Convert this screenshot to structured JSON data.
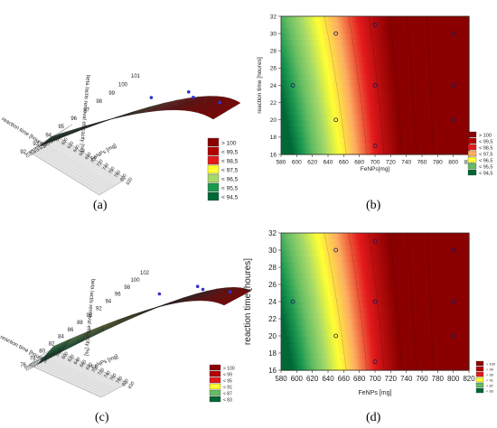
{
  "palette": {
    "dark_green": "#006837",
    "green": "#1a9850",
    "light_green": "#66bd63",
    "lime": "#a6d96a",
    "yellow": "#ffff33",
    "orange": "#fdae61",
    "red": "#e31a1c",
    "dark_red": "#8b0000"
  },
  "chart_data": [
    {
      "panel": "(a)",
      "type": "surface3d",
      "xlabel": "FeNPs [mg]",
      "ylabel": "reaction time [houres]",
      "zlabel": "beta lactis removal efficacity [%]",
      "x_ticks": [
        "580",
        "600",
        "620",
        "640",
        "660",
        "680",
        "700",
        "720",
        "740",
        "760",
        "780",
        "800",
        "820"
      ],
      "y_ticks": [
        "16",
        "18",
        "20",
        "22",
        "24",
        "26",
        "28",
        "30",
        "32"
      ],
      "z_ticks": [
        "92",
        "93",
        "94",
        "95",
        "96",
        "97",
        "98",
        "99",
        "100",
        "101"
      ],
      "zlim": [
        92,
        101
      ],
      "legend": [
        {
          "label": "> 100",
          "color": "#8b0000"
        },
        {
          "label": "< 99,5",
          "color": "#b30000"
        },
        {
          "label": "< 98,5",
          "color": "#e31a1c"
        },
        {
          "label": "< 97,5",
          "color": "#ffff33"
        },
        {
          "label": "< 96,5",
          "color": "#a6d96a"
        },
        {
          "label": "< 95,5",
          "color": "#1a9850"
        },
        {
          "label": "< 94,5",
          "color": "#006837"
        }
      ]
    },
    {
      "panel": "(b)",
      "type": "contour",
      "xlabel": "FeNPs[mg]",
      "ylabel": "reaction time [houres]",
      "xlim": [
        580,
        820
      ],
      "ylim": [
        16,
        32
      ],
      "x_ticks": [
        "580",
        "600",
        "620",
        "640",
        "660",
        "680",
        "700",
        "720",
        "740",
        "760",
        "780",
        "800",
        "820"
      ],
      "y_ticks": [
        "16",
        "18",
        "20",
        "22",
        "24",
        "26",
        "28",
        "30",
        "32"
      ],
      "points": [
        [
          595,
          24
        ],
        [
          650,
          30
        ],
        [
          650,
          20
        ],
        [
          700,
          17
        ],
        [
          700,
          31
        ],
        [
          700,
          24
        ],
        [
          800,
          30
        ],
        [
          800,
          24
        ],
        [
          800,
          20
        ]
      ],
      "legend": [
        {
          "label": "> 100",
          "color": "#8b0000"
        },
        {
          "label": "< 99,5",
          "color": "#b30000"
        },
        {
          "label": "< 98,5",
          "color": "#e31a1c"
        },
        {
          "label": "< 97,5",
          "color": "#fdae61"
        },
        {
          "label": "< 96,5",
          "color": "#ffff33"
        },
        {
          "label": "< 95,5",
          "color": "#66bd63"
        },
        {
          "label": "< 94,5",
          "color": "#006837"
        }
      ]
    },
    {
      "panel": "(c)",
      "type": "surface3d",
      "xlabel": "FeNPs [mg]",
      "ylabel": "reaction time [houres]",
      "zlabel": "beta lactis removal efficacity [%]",
      "x_ticks": [
        "580",
        "600",
        "620",
        "640",
        "660",
        "680",
        "700",
        "720",
        "740",
        "760",
        "780",
        "800",
        "820"
      ],
      "y_ticks": [
        "16",
        "18",
        "20",
        "22",
        "24",
        "26",
        "28",
        "30",
        "32"
      ],
      "z_ticks": [
        "76",
        "78",
        "80",
        "82",
        "84",
        "86",
        "88",
        "90",
        "92",
        "94",
        "96",
        "98",
        "100",
        "102"
      ],
      "zlim": [
        76,
        102
      ],
      "legend": [
        {
          "label": "> 100",
          "color": "#8b0000"
        },
        {
          "label": "< 99",
          "color": "#b30000"
        },
        {
          "label": "< 95",
          "color": "#e31a1c"
        },
        {
          "label": "< 91",
          "color": "#ffff33"
        },
        {
          "label": "< 87",
          "color": "#66bd63"
        },
        {
          "label": "< 83",
          "color": "#006837"
        }
      ]
    },
    {
      "panel": "(d)",
      "type": "contour",
      "xlabel": "FeNPs [mg]",
      "ylabel": "reaction time [houres]",
      "xlim": [
        580,
        820
      ],
      "ylim": [
        16,
        32
      ],
      "x_ticks": [
        "580",
        "600",
        "620",
        "640",
        "660",
        "680",
        "700",
        "720",
        "740",
        "760",
        "780",
        "800",
        "820"
      ],
      "y_ticks": [
        "16",
        "18",
        "20",
        "22",
        "24",
        "26",
        "28",
        "30",
        "32"
      ],
      "points": [
        [
          595,
          24
        ],
        [
          650,
          30
        ],
        [
          650,
          20
        ],
        [
          700,
          17
        ],
        [
          700,
          31
        ],
        [
          700,
          24
        ],
        [
          800,
          30
        ],
        [
          800,
          24
        ],
        [
          800,
          20
        ]
      ],
      "legend": [
        {
          "label": "> 100",
          "color": "#8b0000"
        },
        {
          "label": "< 99",
          "color": "#b30000"
        },
        {
          "label": "< 95",
          "color": "#e31a1c"
        },
        {
          "label": "< 91",
          "color": "#ffff33"
        },
        {
          "label": "< 87",
          "color": "#66bd63"
        },
        {
          "label": "< 83",
          "color": "#006837"
        }
      ]
    }
  ]
}
